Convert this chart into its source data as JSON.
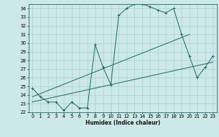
{
  "title": "",
  "xlabel": "Humidex (Indice chaleur)",
  "ylabel": "",
  "bg_color": "#cce8e8",
  "grid_color": "#aad0d0",
  "line_color": "#1a6060",
  "xlim": [
    -0.5,
    23.5
  ],
  "ylim": [
    22,
    34.5
  ],
  "yticks": [
    22,
    23,
    24,
    25,
    26,
    27,
    28,
    29,
    30,
    31,
    32,
    33,
    34
  ],
  "xticks": [
    0,
    1,
    2,
    3,
    4,
    5,
    6,
    7,
    8,
    9,
    10,
    11,
    12,
    13,
    14,
    15,
    16,
    17,
    18,
    19,
    20,
    21,
    22,
    23
  ],
  "main_line_x": [
    0,
    1,
    2,
    3,
    4,
    5,
    6,
    7,
    8,
    9,
    10,
    11,
    12,
    13,
    14,
    15,
    16,
    17,
    18,
    19,
    20,
    21,
    22,
    23
  ],
  "main_line_y": [
    24.8,
    23.8,
    23.2,
    23.2,
    22.2,
    23.2,
    22.5,
    22.5,
    29.8,
    27.2,
    25.2,
    33.2,
    34.0,
    34.5,
    34.5,
    34.2,
    33.8,
    33.5,
    34.0,
    31.0,
    28.5,
    26.0,
    27.2,
    28.5
  ],
  "line2_x": [
    0,
    20
  ],
  "line2_y": [
    23.8,
    31.0
  ],
  "line3_x": [
    0,
    23
  ],
  "line3_y": [
    23.2,
    27.8
  ]
}
